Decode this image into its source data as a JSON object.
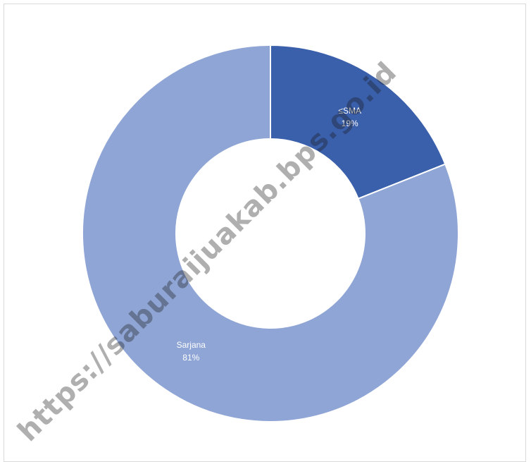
{
  "chart_data": {
    "type": "pie",
    "variant": "donut",
    "categories": [
      "≤SMA",
      "Sarjana"
    ],
    "values": [
      19,
      81
    ],
    "labels": [
      "19%",
      "81%"
    ],
    "colors": [
      "#3a5fab",
      "#8fa5d5"
    ],
    "start": "top, clockwise",
    "legend": "none"
  },
  "watermark": {
    "text": "https://saburaijuakab.bps.go.id"
  }
}
